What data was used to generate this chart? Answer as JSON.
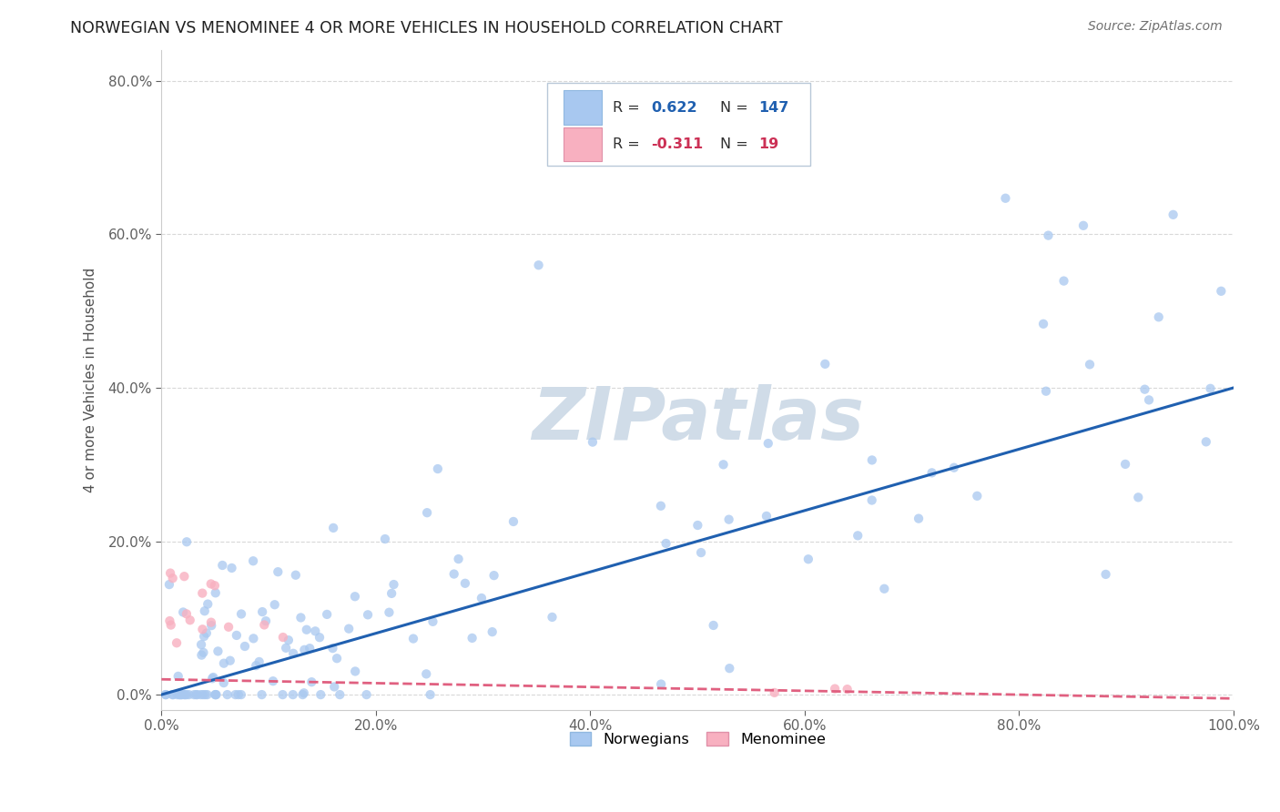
{
  "title": "NORWEGIAN VS MENOMINEE 4 OR MORE VEHICLES IN HOUSEHOLD CORRELATION CHART",
  "source": "Source: ZipAtlas.com",
  "ylabel": "4 or more Vehicles in Household",
  "xlim": [
    0.0,
    1.0
  ],
  "ylim": [
    -0.02,
    0.84
  ],
  "yticks": [
    0.0,
    0.2,
    0.4,
    0.6,
    0.8
  ],
  "yticklabels": [
    "0.0%",
    "20.0%",
    "40.0%",
    "60.0%",
    "80.0%"
  ],
  "xticks": [
    0.0,
    0.2,
    0.4,
    0.6,
    0.8,
    1.0
  ],
  "xticklabels": [
    "0.0%",
    "20.0%",
    "40.0%",
    "60.0%",
    "80.0%",
    "100.0%"
  ],
  "norwegian_color": "#a8c8f0",
  "menominee_color": "#f8b0c0",
  "norwegian_line_color": "#2060b0",
  "menominee_line_color": "#e06080",
  "R_norwegian": 0.622,
  "N_norwegian": 147,
  "R_menominee": -0.311,
  "N_menominee": 19,
  "watermark": "ZIPatlas",
  "watermark_color": "#d0dce8",
  "legend_labels": [
    "Norwegians",
    "Menominee"
  ],
  "background_color": "#ffffff",
  "grid_color": "#d8d8d8",
  "nor_line_x0": 0.0,
  "nor_line_y0": 0.0,
  "nor_line_x1": 1.0,
  "nor_line_y1": 0.4,
  "men_line_x0": 0.0,
  "men_line_y0": 0.02,
  "men_line_x1": 1.0,
  "men_line_y1": -0.005
}
